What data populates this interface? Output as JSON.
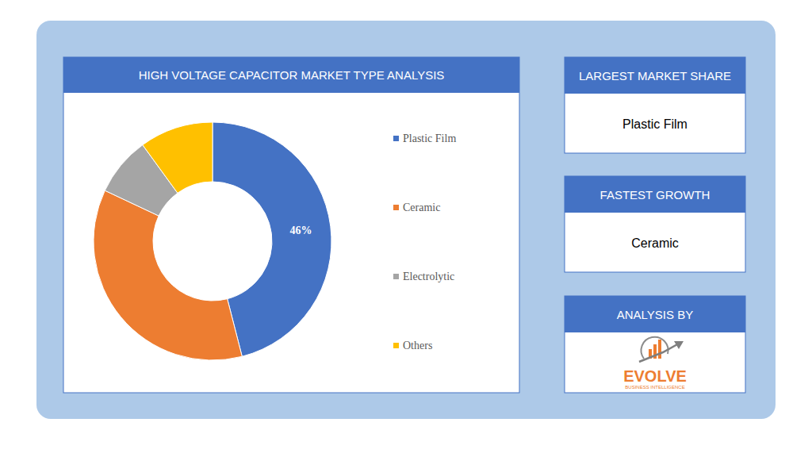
{
  "chart_data": {
    "type": "donut",
    "title": "HIGH VOLTAGE CAPACITOR MARKET TYPE ANALYSIS",
    "categories": [
      "Plastic Film",
      "Ceramic",
      "Electrolytic",
      "Others"
    ],
    "values": [
      46,
      36,
      8,
      10
    ],
    "colors": [
      "#4472c4",
      "#ed7d31",
      "#a5a5a5",
      "#ffc000"
    ],
    "data_labels": true,
    "value_labels": [
      "46%",
      null,
      null,
      null
    ],
    "legend": "right"
  },
  "side_panels": [
    {
      "title": "LARGEST MARKET SHARE",
      "value": "Plastic Film"
    },
    {
      "title": "FASTEST GROWTH",
      "value": "Ceramic"
    },
    {
      "title": "ANALYSIS BY",
      "logo_text": "EVOLVE",
      "logo_subtext": "BUSINESS INTELLIGENCE"
    }
  ]
}
